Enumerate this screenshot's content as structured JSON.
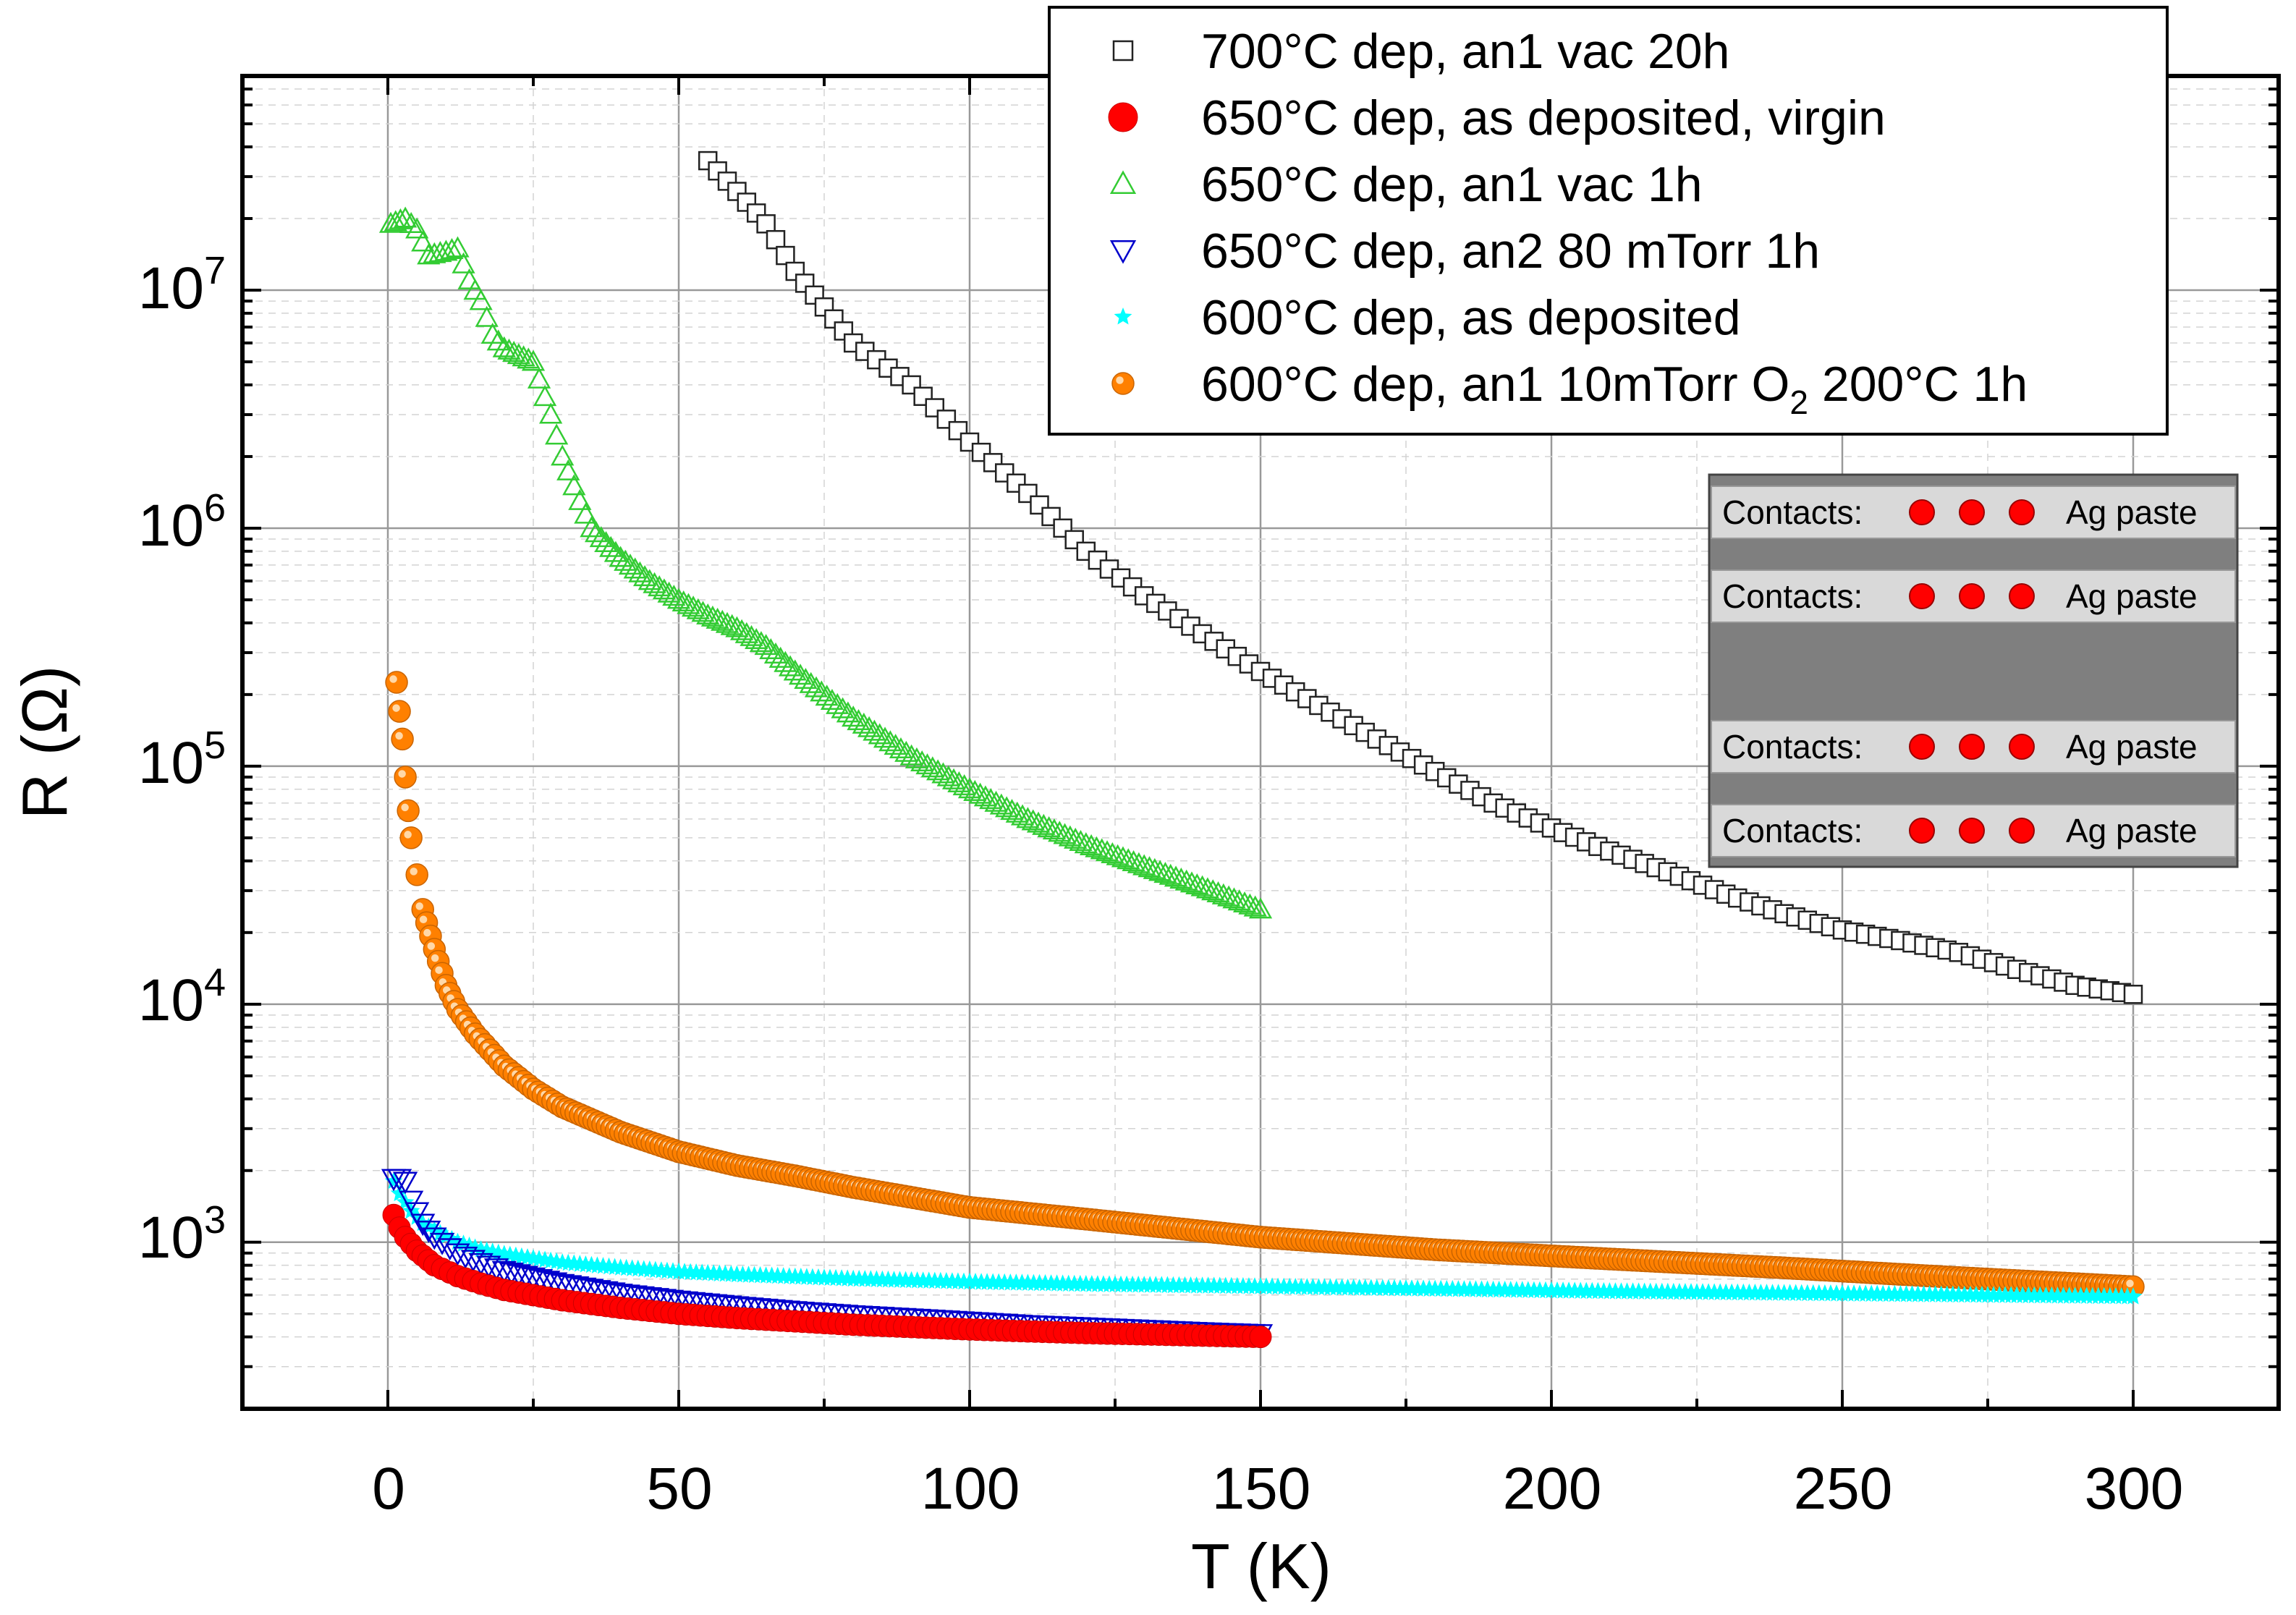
{
  "chart_data": {
    "type": "scatter",
    "title": "",
    "xlabel": "T (K)",
    "ylabel": "R (Ω)",
    "xlim": [
      -25,
      325
    ],
    "ylim_log10": [
      2.3,
      7.9
    ],
    "y_scale": "log",
    "grid": true,
    "legend_position": "top-right",
    "x_ticks": [
      0,
      50,
      100,
      150,
      200,
      250,
      300
    ],
    "x_tick_labels": [
      "0",
      "50",
      "100",
      "150",
      "200",
      "250",
      "300"
    ],
    "y_ticks": [
      1000,
      10000,
      100000,
      1000000,
      10000000
    ],
    "y_tick_labels": [
      {
        "base": "10",
        "exp": "3"
      },
      {
        "base": "10",
        "exp": "4"
      },
      {
        "base": "10",
        "exp": "5"
      },
      {
        "base": "10",
        "exp": "6"
      },
      {
        "base": "10",
        "exp": "7"
      }
    ],
    "series": [
      {
        "name": "700°C dep, an1 vac 20h",
        "marker": "open-square",
        "color": "#222222",
        "points": [
          [
            55,
            35000000
          ],
          [
            60,
            26000000
          ],
          [
            65,
            19000000
          ],
          [
            70,
            12000000
          ],
          [
            75,
            8500000
          ],
          [
            80,
            6000000
          ],
          [
            90,
            4000000
          ],
          [
            100,
            2300000
          ],
          [
            110,
            1400000
          ],
          [
            120,
            800000
          ],
          [
            130,
            520000
          ],
          [
            140,
            360000
          ],
          [
            150,
            250000
          ],
          [
            160,
            180000
          ],
          [
            170,
            130000
          ],
          [
            180,
            95000
          ],
          [
            190,
            70000
          ],
          [
            200,
            55000
          ],
          [
            210,
            44000
          ],
          [
            220,
            36000
          ],
          [
            230,
            29000
          ],
          [
            240,
            24000
          ],
          [
            250,
            20500
          ],
          [
            260,
            18500
          ],
          [
            270,
            16500
          ],
          [
            280,
            14000
          ],
          [
            290,
            12000
          ],
          [
            300,
            11000
          ]
        ]
      },
      {
        "name": "650°C dep, as deposited, virgin",
        "marker": "filled-circle",
        "color": "#ff0000",
        "points": [
          [
            1,
            1300
          ],
          [
            2,
            1150
          ],
          [
            3,
            1050
          ],
          [
            5,
            920
          ],
          [
            8,
            800
          ],
          [
            12,
            720
          ],
          [
            16,
            670
          ],
          [
            20,
            630
          ],
          [
            30,
            570
          ],
          [
            40,
            530
          ],
          [
            50,
            500
          ],
          [
            60,
            480
          ],
          [
            70,
            465
          ],
          [
            80,
            450
          ],
          [
            90,
            440
          ],
          [
            100,
            430
          ],
          [
            110,
            422
          ],
          [
            120,
            415
          ],
          [
            130,
            410
          ],
          [
            140,
            405
          ],
          [
            150,
            400
          ]
        ]
      },
      {
        "name": "650°C dep, an1 vac 1h",
        "marker": "open-triangle-up",
        "color": "#33cc33",
        "points": [
          [
            0.5,
            19000000
          ],
          [
            3,
            20000000
          ],
          [
            5,
            18000000
          ],
          [
            7,
            14000000
          ],
          [
            10,
            14500000
          ],
          [
            12,
            15000000
          ],
          [
            14,
            11000000
          ],
          [
            16,
            9000000
          ],
          [
            18,
            6500000
          ],
          [
            20,
            5700000
          ],
          [
            25,
            5000000
          ],
          [
            28,
            3000000
          ],
          [
            30,
            2000000
          ],
          [
            33,
            1300000
          ],
          [
            35,
            1000000
          ],
          [
            40,
            750000
          ],
          [
            45,
            600000
          ],
          [
            50,
            500000
          ],
          [
            55,
            430000
          ],
          [
            60,
            380000
          ],
          [
            65,
            320000
          ],
          [
            70,
            250000
          ],
          [
            80,
            160000
          ],
          [
            90,
            110000
          ],
          [
            100,
            80000
          ],
          [
            110,
            60000
          ],
          [
            120,
            47000
          ],
          [
            130,
            38000
          ],
          [
            140,
            31000
          ],
          [
            150,
            25000
          ]
        ]
      },
      {
        "name": "650°C dep, an2 80 mTorr 1h",
        "marker": "open-triangle-down",
        "color": "#0000cc",
        "points": [
          [
            1,
            1850
          ],
          [
            2,
            1850
          ],
          [
            3,
            1800
          ],
          [
            4,
            1500
          ],
          [
            6,
            1200
          ],
          [
            8,
            1050
          ],
          [
            12,
            900
          ],
          [
            16,
            820
          ],
          [
            20,
            760
          ],
          [
            30,
            670
          ],
          [
            40,
            610
          ],
          [
            50,
            570
          ],
          [
            60,
            540
          ],
          [
            70,
            515
          ],
          [
            80,
            495
          ],
          [
            90,
            480
          ],
          [
            100,
            465
          ],
          [
            110,
            450
          ],
          [
            120,
            440
          ],
          [
            130,
            430
          ],
          [
            140,
            420
          ],
          [
            150,
            412
          ]
        ]
      },
      {
        "name": "600°C dep, as deposited",
        "marker": "filled-star",
        "color": "#00ffff",
        "points": [
          [
            1,
            1800
          ],
          [
            2,
            1600
          ],
          [
            4,
            1350
          ],
          [
            6,
            1200
          ],
          [
            8,
            1120
          ],
          [
            12,
            1000
          ],
          [
            16,
            930
          ],
          [
            20,
            890
          ],
          [
            30,
            820
          ],
          [
            40,
            780
          ],
          [
            50,
            750
          ],
          [
            60,
            730
          ],
          [
            80,
            700
          ],
          [
            100,
            680
          ],
          [
            120,
            665
          ],
          [
            150,
            650
          ],
          [
            180,
            635
          ],
          [
            210,
            620
          ],
          [
            240,
            610
          ],
          [
            270,
            600
          ],
          [
            300,
            590
          ]
        ]
      },
      {
        "name": "600°C dep, an1 10mTorr O₂ 200°C 1h",
        "marker": "filled-sphere",
        "color": "#ff8000",
        "points": [
          [
            1.5,
            225000
          ],
          [
            2,
            170000
          ],
          [
            2.5,
            130000
          ],
          [
            3,
            90000
          ],
          [
            3.5,
            65000
          ],
          [
            4,
            50000
          ],
          [
            5,
            35000
          ],
          [
            6,
            25000
          ],
          [
            8,
            17000
          ],
          [
            10,
            12000
          ],
          [
            12,
            9500
          ],
          [
            15,
            7500
          ],
          [
            20,
            5500
          ],
          [
            25,
            4400
          ],
          [
            30,
            3700
          ],
          [
            40,
            2900
          ],
          [
            50,
            2400
          ],
          [
            60,
            2100
          ],
          [
            70,
            1900
          ],
          [
            80,
            1700
          ],
          [
            100,
            1400
          ],
          [
            120,
            1250
          ],
          [
            150,
            1050
          ],
          [
            180,
            930
          ],
          [
            210,
            850
          ],
          [
            240,
            780
          ],
          [
            270,
            710
          ],
          [
            300,
            650
          ]
        ]
      }
    ]
  },
  "legend": {
    "entries": [
      {
        "text": "700°C dep, an1 vac 20h"
      },
      {
        "text": "650°C dep, as deposited, virgin"
      },
      {
        "text": "650°C dep, an1 vac 1h"
      },
      {
        "text": "650°C dep, an2 80 mTorr 1h"
      },
      {
        "text": "600°C dep, as deposited"
      },
      {
        "text": "600°C dep, an1 10mTorr O",
        "sub": "2",
        "after": " 200°C 1h"
      }
    ]
  },
  "inset": {
    "rows": [
      {
        "label": "Contacts:",
        "right_label": "Ag paste"
      },
      {
        "label": "Contacts:",
        "right_label": "Ag paste"
      },
      {
        "label": "Contacts:",
        "right_label": "Ag paste"
      },
      {
        "label": "Contacts:",
        "right_label": "Ag paste"
      }
    ],
    "contact_color": "#ff0000",
    "strip_color": "#d9d9d9",
    "substrate_color": "#7f7f7f"
  }
}
